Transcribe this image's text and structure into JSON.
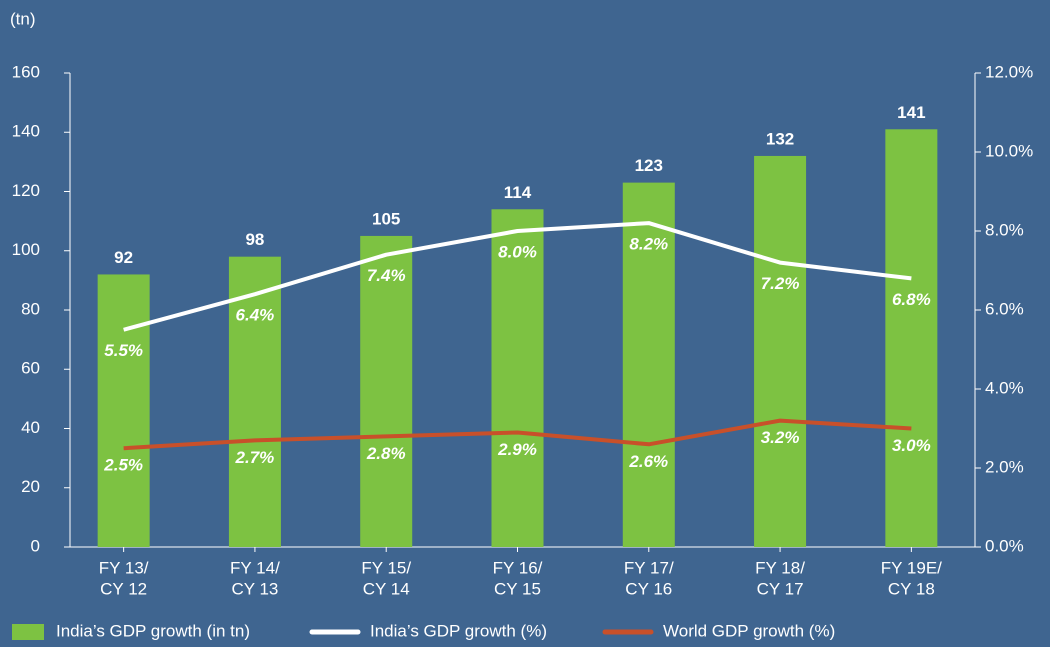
{
  "chart_data": {
    "type": "bar",
    "ylabel": "(tn)",
    "categories": [
      [
        "FY 13/",
        "CY 12"
      ],
      [
        "FY 14/",
        "CY 13"
      ],
      [
        "FY 15/",
        "CY 14"
      ],
      [
        "FY 16/",
        "CY 15"
      ],
      [
        "FY 17/",
        "CY 16"
      ],
      [
        "FY 18/",
        "CY 17"
      ],
      [
        "FY 19E/",
        "CY 18"
      ]
    ],
    "ylim": [
      0,
      160
    ],
    "yticks": [
      0,
      20,
      40,
      60,
      80,
      100,
      120,
      140,
      160
    ],
    "y2lim": [
      0,
      12
    ],
    "y2ticks": [
      {
        "value": 0,
        "label": "0.0%"
      },
      {
        "value": 2,
        "label": "2.0%"
      },
      {
        "value": 4,
        "label": "4.0%"
      },
      {
        "value": 6,
        "label": "6.0%"
      },
      {
        "value": 8,
        "label": "8.0%"
      },
      {
        "value": 10,
        "label": "10.0%"
      },
      {
        "value": 12,
        "label": "12.0%"
      }
    ],
    "series": [
      {
        "name": "India’s GDP growth (in tn)",
        "type": "bar",
        "color": "#7dc242",
        "values": [
          92,
          98,
          105,
          114,
          123,
          132,
          141
        ]
      },
      {
        "name": "India’s GDP growth (%)",
        "type": "line",
        "axis": "y2",
        "color": "#ffffff",
        "values": [
          5.5,
          6.4,
          7.4,
          8.0,
          8.2,
          7.2,
          6.8
        ],
        "value_labels": [
          "5.5%",
          "6.4%",
          "7.4%",
          "8.0%",
          "8.2%",
          "7.2%",
          "6.8%"
        ]
      },
      {
        "name": "World GDP growth (%)",
        "type": "line",
        "axis": "y2",
        "color": "#c8502a",
        "values": [
          2.5,
          2.7,
          2.8,
          2.9,
          2.6,
          3.2,
          3.0
        ],
        "value_labels": [
          "2.5%",
          "2.7%",
          "2.8%",
          "2.9%",
          "2.6%",
          "3.2%",
          "3.0%"
        ]
      }
    ]
  }
}
